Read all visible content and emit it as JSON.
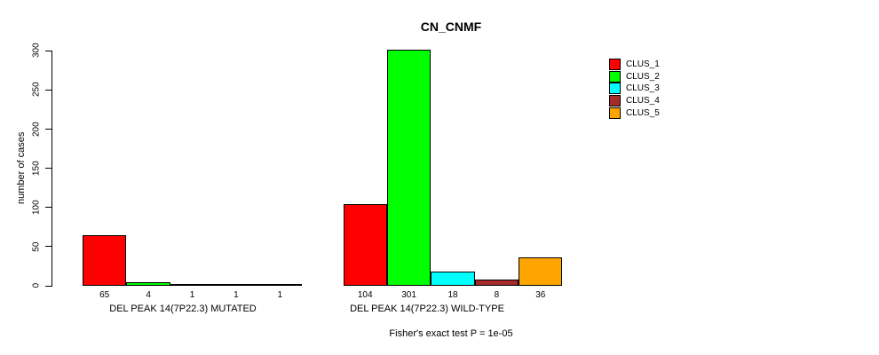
{
  "chart_data": {
    "type": "bar",
    "title": "CN_CNMF",
    "ylabel": "number of cases",
    "xlabel": "",
    "ylim": [
      0,
      300
    ],
    "yticks": [
      0,
      50,
      100,
      150,
      200,
      250,
      300
    ],
    "grid": false,
    "legend_position": "top-right",
    "annotation": "Fisher's exact test P = 1e-05",
    "categories": [
      "DEL PEAK 14(7P22.3) MUTATED",
      "DEL PEAK 14(7P22.3) WILD-TYPE"
    ],
    "series": [
      {
        "name": "CLUS_1",
        "color": "#FF0000",
        "values": [
          65,
          104
        ]
      },
      {
        "name": "CLUS_2",
        "color": "#00FF00",
        "values": [
          4,
          301
        ]
      },
      {
        "name": "CLUS_3",
        "color": "#00FFFF",
        "values": [
          1,
          18
        ]
      },
      {
        "name": "CLUS_4",
        "color": "#A52A2A",
        "values": [
          1,
          8
        ]
      },
      {
        "name": "CLUS_5",
        "color": "#FFA500",
        "values": [
          1,
          36
        ]
      }
    ],
    "axis_color": "#000000",
    "background": "#FFFFFF"
  }
}
